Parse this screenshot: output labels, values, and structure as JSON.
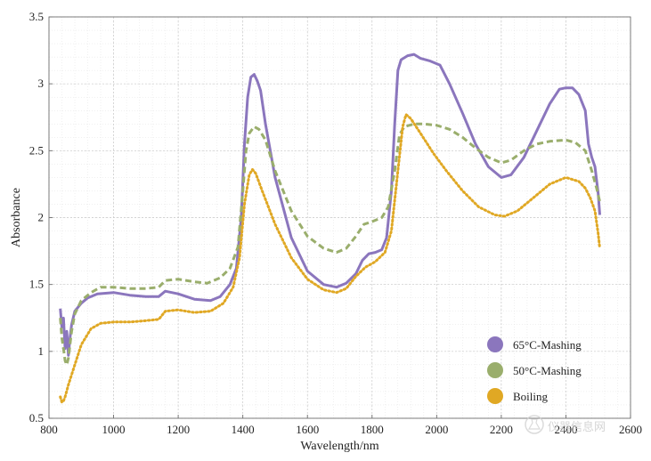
{
  "chart_data": {
    "type": "line",
    "title": "",
    "xlabel": "Wavelength/nm",
    "ylabel": "Absorbance",
    "xlim": [
      800,
      2600
    ],
    "ylim": [
      0.5,
      3.5
    ],
    "x_ticks": [
      "800",
      "1000",
      "1200",
      "1400",
      "1600",
      "1800",
      "2000",
      "2200",
      "2400",
      "2600"
    ],
    "y_ticks": [
      "0.5",
      "1",
      "1.5",
      "2",
      "2.5",
      "3",
      "3.5"
    ],
    "grid": true,
    "legend_position": "bottom-right",
    "series": [
      {
        "name": "65°C-Mashing",
        "color": "#8B76BD",
        "style": "solid",
        "points": [
          [
            835,
            1.32
          ],
          [
            840,
            1.18
          ],
          [
            845,
            1.25
          ],
          [
            850,
            1.02
          ],
          [
            855,
            1.15
          ],
          [
            860,
            0.97
          ],
          [
            865,
            1.1
          ],
          [
            870,
            1.2
          ],
          [
            880,
            1.3
          ],
          [
            900,
            1.36
          ],
          [
            920,
            1.4
          ],
          [
            950,
            1.43
          ],
          [
            1000,
            1.44
          ],
          [
            1050,
            1.42
          ],
          [
            1100,
            1.41
          ],
          [
            1140,
            1.41
          ],
          [
            1160,
            1.45
          ],
          [
            1200,
            1.43
          ],
          [
            1250,
            1.39
          ],
          [
            1300,
            1.38
          ],
          [
            1330,
            1.41
          ],
          [
            1360,
            1.5
          ],
          [
            1380,
            1.62
          ],
          [
            1395,
            2.0
          ],
          [
            1405,
            2.55
          ],
          [
            1415,
            2.9
          ],
          [
            1425,
            3.05
          ],
          [
            1435,
            3.07
          ],
          [
            1445,
            3.02
          ],
          [
            1455,
            2.95
          ],
          [
            1470,
            2.7
          ],
          [
            1500,
            2.3
          ],
          [
            1550,
            1.85
          ],
          [
            1600,
            1.6
          ],
          [
            1650,
            1.5
          ],
          [
            1690,
            1.48
          ],
          [
            1720,
            1.51
          ],
          [
            1750,
            1.58
          ],
          [
            1770,
            1.68
          ],
          [
            1790,
            1.73
          ],
          [
            1810,
            1.74
          ],
          [
            1830,
            1.76
          ],
          [
            1845,
            1.85
          ],
          [
            1860,
            2.2
          ],
          [
            1870,
            2.7
          ],
          [
            1880,
            3.1
          ],
          [
            1890,
            3.18
          ],
          [
            1910,
            3.21
          ],
          [
            1930,
            3.22
          ],
          [
            1950,
            3.19
          ],
          [
            1980,
            3.17
          ],
          [
            2010,
            3.14
          ],
          [
            2040,
            3.0
          ],
          [
            2080,
            2.78
          ],
          [
            2120,
            2.55
          ],
          [
            2160,
            2.38
          ],
          [
            2200,
            2.3
          ],
          [
            2230,
            2.32
          ],
          [
            2270,
            2.45
          ],
          [
            2310,
            2.65
          ],
          [
            2350,
            2.85
          ],
          [
            2380,
            2.96
          ],
          [
            2400,
            2.97
          ],
          [
            2420,
            2.97
          ],
          [
            2440,
            2.92
          ],
          [
            2460,
            2.8
          ],
          [
            2470,
            2.55
          ],
          [
            2480,
            2.45
          ],
          [
            2490,
            2.38
          ],
          [
            2500,
            2.18
          ],
          [
            2505,
            2.02
          ]
        ]
      },
      {
        "name": "50°C-Mashing",
        "color": "#9AAE6C",
        "style": "dashed",
        "points": [
          [
            835,
            1.25
          ],
          [
            840,
            1.1
          ],
          [
            845,
            1.02
          ],
          [
            850,
            0.93
          ],
          [
            855,
            0.9
          ],
          [
            860,
            0.95
          ],
          [
            865,
            1.05
          ],
          [
            870,
            1.15
          ],
          [
            880,
            1.28
          ],
          [
            900,
            1.38
          ],
          [
            930,
            1.44
          ],
          [
            960,
            1.48
          ],
          [
            1000,
            1.48
          ],
          [
            1050,
            1.47
          ],
          [
            1100,
            1.47
          ],
          [
            1140,
            1.48
          ],
          [
            1160,
            1.53
          ],
          [
            1200,
            1.54
          ],
          [
            1250,
            1.52
          ],
          [
            1290,
            1.51
          ],
          [
            1330,
            1.55
          ],
          [
            1360,
            1.62
          ],
          [
            1385,
            1.78
          ],
          [
            1400,
            2.2
          ],
          [
            1410,
            2.5
          ],
          [
            1420,
            2.63
          ],
          [
            1435,
            2.68
          ],
          [
            1450,
            2.66
          ],
          [
            1470,
            2.58
          ],
          [
            1500,
            2.35
          ],
          [
            1550,
            2.05
          ],
          [
            1600,
            1.86
          ],
          [
            1650,
            1.77
          ],
          [
            1690,
            1.74
          ],
          [
            1720,
            1.77
          ],
          [
            1750,
            1.86
          ],
          [
            1775,
            1.95
          ],
          [
            1800,
            1.97
          ],
          [
            1830,
            2.0
          ],
          [
            1850,
            2.08
          ],
          [
            1870,
            2.35
          ],
          [
            1885,
            2.62
          ],
          [
            1900,
            2.68
          ],
          [
            1930,
            2.7
          ],
          [
            1960,
            2.7
          ],
          [
            2000,
            2.69
          ],
          [
            2040,
            2.66
          ],
          [
            2080,
            2.6
          ],
          [
            2120,
            2.52
          ],
          [
            2160,
            2.45
          ],
          [
            2200,
            2.41
          ],
          [
            2230,
            2.43
          ],
          [
            2270,
            2.5
          ],
          [
            2310,
            2.55
          ],
          [
            2350,
            2.57
          ],
          [
            2400,
            2.58
          ],
          [
            2430,
            2.56
          ],
          [
            2460,
            2.5
          ],
          [
            2480,
            2.35
          ],
          [
            2495,
            2.22
          ],
          [
            2505,
            2.12
          ]
        ]
      },
      {
        "name": "Boiling",
        "color": "#E0A824",
        "style": "dotted",
        "points": [
          [
            835,
            0.66
          ],
          [
            840,
            0.62
          ],
          [
            845,
            0.63
          ],
          [
            850,
            0.66
          ],
          [
            860,
            0.75
          ],
          [
            880,
            0.9
          ],
          [
            900,
            1.05
          ],
          [
            930,
            1.17
          ],
          [
            960,
            1.21
          ],
          [
            1000,
            1.22
          ],
          [
            1050,
            1.22
          ],
          [
            1100,
            1.23
          ],
          [
            1140,
            1.24
          ],
          [
            1160,
            1.3
          ],
          [
            1200,
            1.31
          ],
          [
            1250,
            1.29
          ],
          [
            1300,
            1.3
          ],
          [
            1340,
            1.36
          ],
          [
            1370,
            1.48
          ],
          [
            1390,
            1.7
          ],
          [
            1405,
            2.1
          ],
          [
            1420,
            2.32
          ],
          [
            1430,
            2.36
          ],
          [
            1440,
            2.33
          ],
          [
            1460,
            2.2
          ],
          [
            1500,
            1.95
          ],
          [
            1550,
            1.7
          ],
          [
            1600,
            1.54
          ],
          [
            1650,
            1.46
          ],
          [
            1690,
            1.44
          ],
          [
            1720,
            1.47
          ],
          [
            1750,
            1.56
          ],
          [
            1780,
            1.63
          ],
          [
            1810,
            1.67
          ],
          [
            1840,
            1.74
          ],
          [
            1860,
            1.9
          ],
          [
            1880,
            2.35
          ],
          [
            1895,
            2.68
          ],
          [
            1905,
            2.77
          ],
          [
            1920,
            2.74
          ],
          [
            1950,
            2.63
          ],
          [
            1990,
            2.48
          ],
          [
            2030,
            2.35
          ],
          [
            2080,
            2.2
          ],
          [
            2130,
            2.08
          ],
          [
            2180,
            2.02
          ],
          [
            2210,
            2.01
          ],
          [
            2250,
            2.05
          ],
          [
            2300,
            2.15
          ],
          [
            2350,
            2.25
          ],
          [
            2400,
            2.3
          ],
          [
            2440,
            2.27
          ],
          [
            2460,
            2.22
          ],
          [
            2475,
            2.15
          ],
          [
            2490,
            2.05
          ],
          [
            2500,
            1.88
          ],
          [
            2505,
            1.77
          ]
        ]
      }
    ]
  },
  "watermark": {
    "text": "仪器信息网",
    "icon": "flask-logo-icon"
  }
}
